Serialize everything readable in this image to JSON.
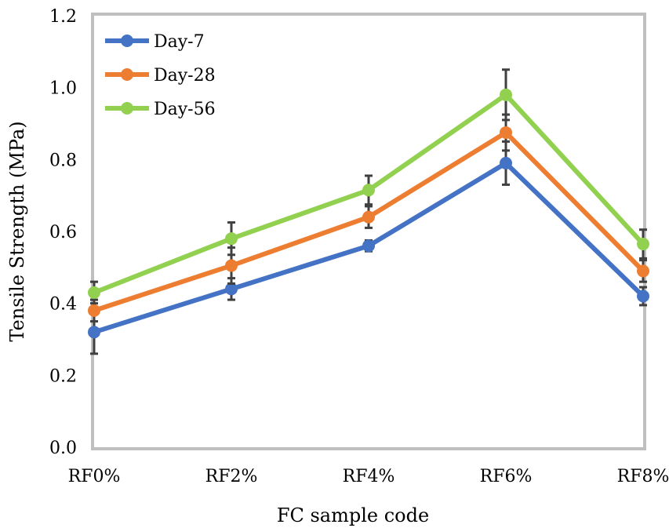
{
  "chart_data": {
    "type": "line",
    "title": "",
    "xlabel": "FC sample code",
    "ylabel": "Tensile Strength (MPa)",
    "categories": [
      "RF0%",
      "RF2%",
      "RF4%",
      "RF6%",
      "RF8%"
    ],
    "ylim": [
      0,
      1.2
    ],
    "yticks": [
      "0.0",
      "0.2",
      "0.4",
      "0.6",
      "0.8",
      "1.0",
      "1.2"
    ],
    "grid": false,
    "legend_position": "top-left",
    "series": [
      {
        "name": "Day-7",
        "color": "#4472C4",
        "values": [
          0.32,
          0.44,
          0.56,
          0.79,
          0.42
        ],
        "errors": [
          0.06,
          0.03,
          0.015,
          0.06,
          0.025
        ]
      },
      {
        "name": "Day-28",
        "color": "#ED7D31",
        "values": [
          0.38,
          0.505,
          0.64,
          0.875,
          0.49
        ],
        "errors": [
          0.03,
          0.05,
          0.03,
          0.05,
          0.03
        ]
      },
      {
        "name": "Day-56",
        "color": "#92D050",
        "values": [
          0.43,
          0.58,
          0.715,
          0.98,
          0.565
        ],
        "errors": [
          0.03,
          0.045,
          0.04,
          0.07,
          0.04
        ]
      }
    ]
  }
}
